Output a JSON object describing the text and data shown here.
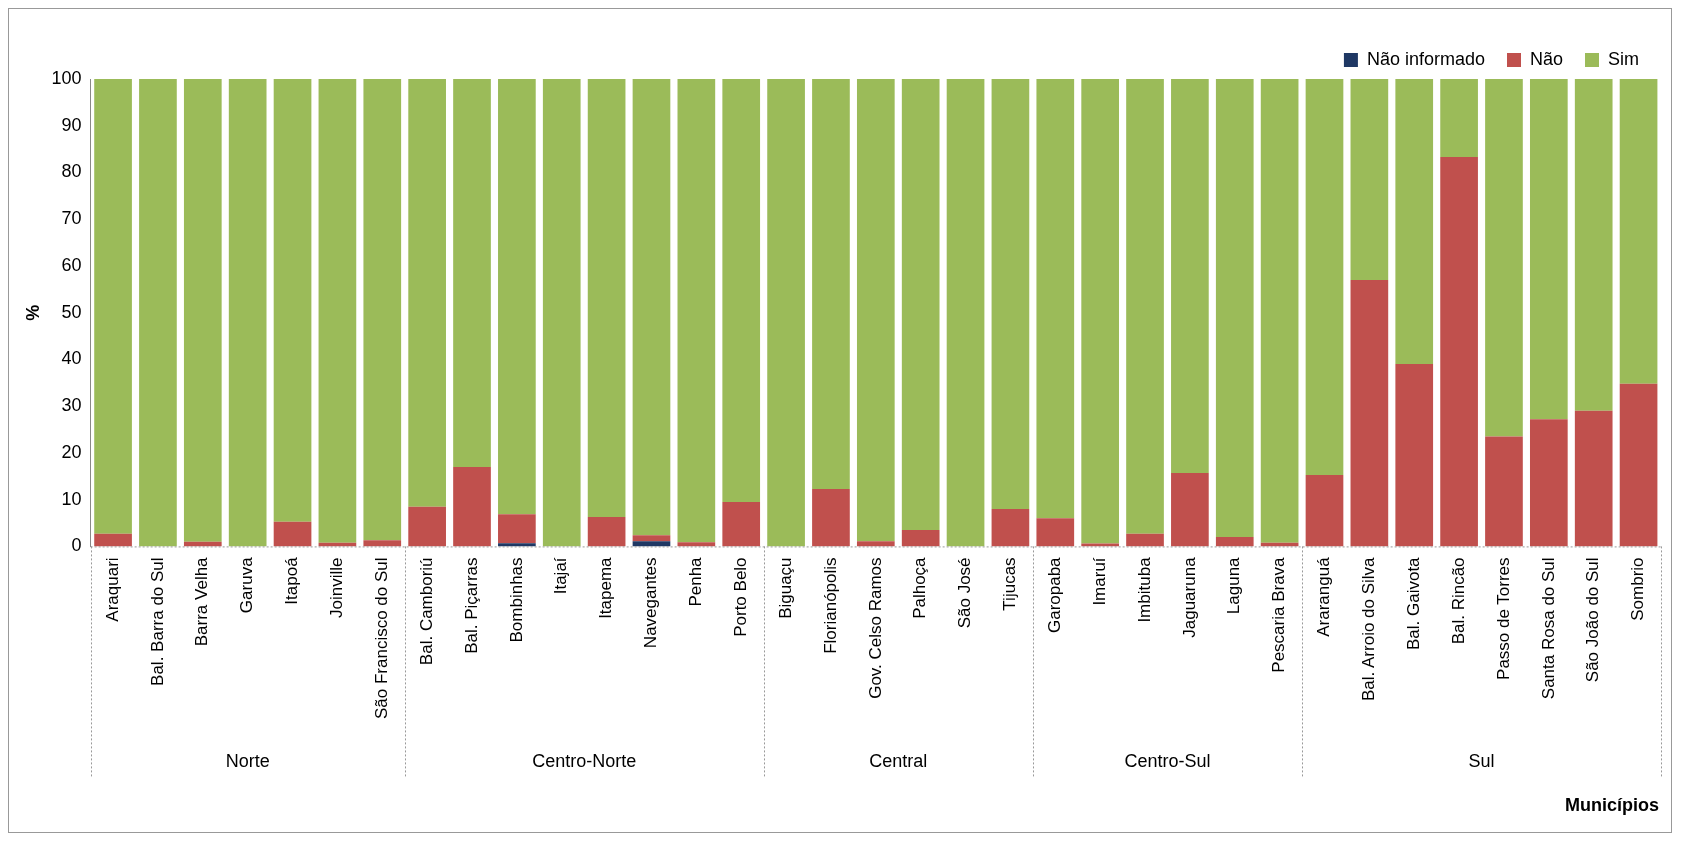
{
  "chart_data": {
    "type": "bar",
    "stacked": true,
    "ylabel": "%",
    "xlabel": "Municípios",
    "legend": "top right",
    "categories": [
      "Araquari",
      "Bal. Barra do Sul",
      "Barra Velha",
      "Garuva",
      "Itapoá",
      "Joinville",
      "São Francisco do Sul",
      "Bal. Camboriú",
      "Bal. Piçarras",
      "Bombinhas",
      "Itajaí",
      "Itapema",
      "Navegantes",
      "Penha",
      "Porto Belo",
      "Biguaçu",
      "Florianópolis",
      "Gov. Celso Ramos",
      "Palhoça",
      "São José",
      "Tijucas",
      "Garopaba",
      "Imaruí",
      "Imbituba",
      "Jaguaruna",
      "Laguna",
      "Pescaria Brava",
      "Araranguá",
      "Bal. Arroio do Silva",
      "Bal. Gaivota",
      "Bal. Rincão",
      "Passo de Torres",
      "Santa Rosa do Sul",
      "São João do Sul",
      "Sombrio"
    ],
    "series": [
      {
        "name": "Não informado",
        "color": "#1f3864",
        "values": [
          0,
          0,
          0,
          0,
          0,
          0,
          0,
          0,
          0,
          0.7,
          0,
          0,
          1.1,
          0,
          0,
          0,
          0,
          0,
          0,
          0,
          0,
          0,
          0,
          0,
          0,
          0,
          0,
          0,
          0,
          0,
          0,
          0,
          0,
          0,
          0
        ]
      },
      {
        "name": "Não",
        "color": "#c0504d",
        "values": [
          2.7,
          0,
          1,
          0,
          5.3,
          0.8,
          1.3,
          8.5,
          17,
          6.2,
          0,
          6.3,
          1.3,
          0.9,
          9.5,
          0,
          12.3,
          1.1,
          3.5,
          0,
          8,
          6,
          0.6,
          2.7,
          15.7,
          2,
          0.8,
          15.3,
          57,
          39,
          83.3,
          23.5,
          27.2,
          29,
          34.8
        ]
      },
      {
        "name": "Sim",
        "color": "#9bbb59",
        "values": [
          97.3,
          100,
          99,
          100,
          94.7,
          99.2,
          98.7,
          91.5,
          83,
          93.1,
          100,
          93.7,
          97.6,
          99.1,
          90.5,
          100,
          87.7,
          98.9,
          96.5,
          100,
          92,
          94,
          99.4,
          97.3,
          84.3,
          98,
          99.2,
          84.7,
          43,
          61,
          16.7,
          76.5,
          72.8,
          71,
          65.2
        ]
      }
    ],
    "ylim": [
      0,
      100
    ],
    "yticks": [
      0,
      10,
      20,
      30,
      40,
      50,
      60,
      70,
      80,
      90,
      100
    ],
    "annotations": [
      "Norte",
      "Centro-Norte",
      "Central",
      "Centro-Sul",
      "Sul"
    ]
  }
}
